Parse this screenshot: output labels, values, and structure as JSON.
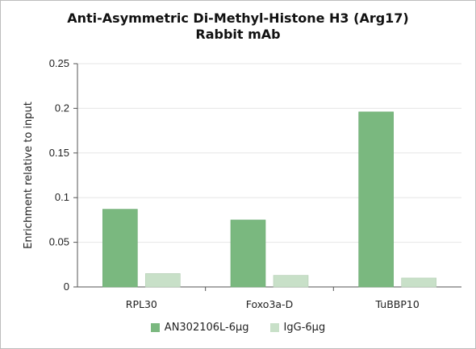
{
  "chart_data": {
    "type": "bar",
    "title": "Anti-Asymmetric Di-Methyl-Histone H3 (Arg17)",
    "subtitle": "Rabbit mAb",
    "xlabel": "",
    "ylabel": "Enrichment relative to input",
    "ylim": [
      0,
      0.25
    ],
    "yticks": [
      "0",
      "0.05",
      "0.1",
      "0.15",
      "0.2",
      "0.25"
    ],
    "categories": [
      "RPL30",
      "Foxo3a-D",
      "TuBBP10"
    ],
    "series": [
      {
        "name": "AN302106L-6µg",
        "values": [
          0.087,
          0.075,
          0.196
        ],
        "color": "#7ab87f"
      },
      {
        "name": "IgG-6µg",
        "values": [
          0.015,
          0.013,
          0.01
        ],
        "color": "#c8e0c8"
      }
    ],
    "grid": true,
    "legend": "bottom"
  }
}
